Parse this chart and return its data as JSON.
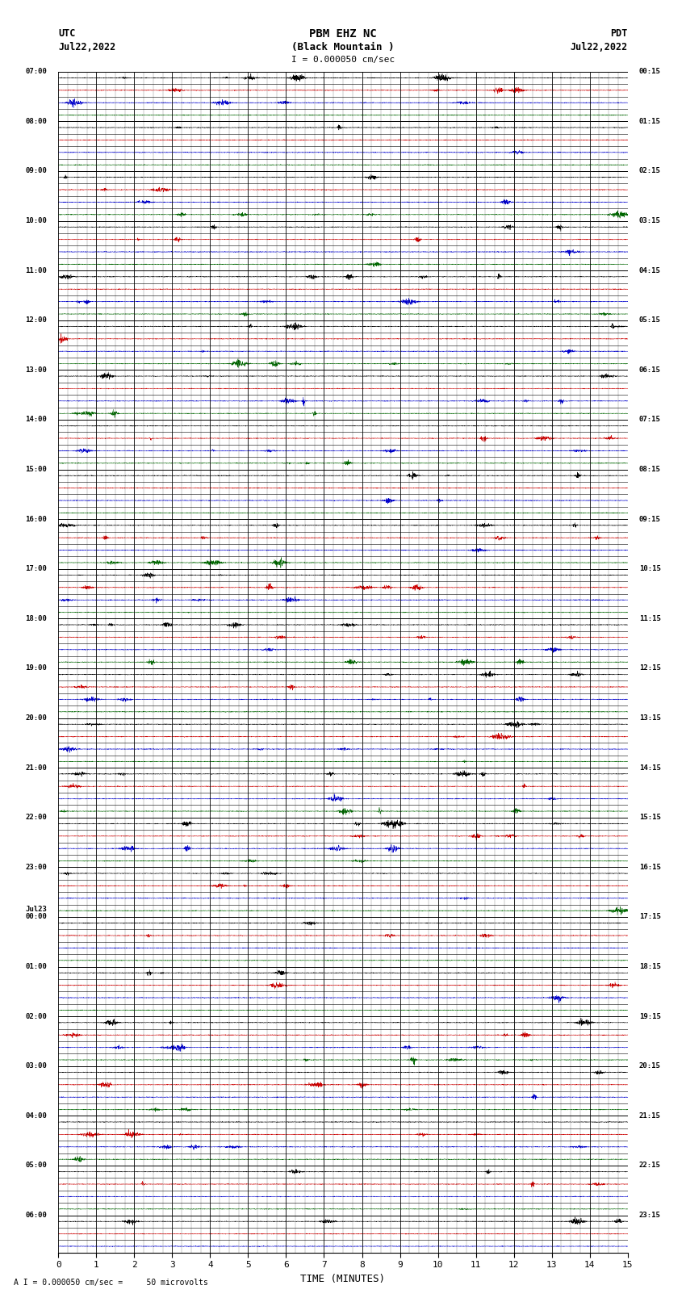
{
  "title_line1": "PBM EHZ NC",
  "title_line2": "(Black Mountain )",
  "scale_label": "I = 0.000050 cm/sec",
  "left_date": "Jul22,2022",
  "right_date": "Jul22,2022",
  "left_tz": "UTC",
  "right_tz": "PDT",
  "bottom_label": "TIME (MINUTES)",
  "bottom_note": "A I = 0.000050 cm/sec =     50 microvolts",
  "utc_hour_labels": [
    "07:00",
    "08:00",
    "09:00",
    "10:00",
    "11:00",
    "12:00",
    "13:00",
    "14:00",
    "15:00",
    "16:00",
    "17:00",
    "18:00",
    "19:00",
    "20:00",
    "21:00",
    "22:00",
    "23:00",
    "00:00",
    "01:00",
    "02:00",
    "03:00",
    "04:00",
    "05:00",
    "06:00"
  ],
  "jul23_row_idx": 68,
  "pdt_hour_labels": [
    "00:15",
    "01:15",
    "02:15",
    "03:15",
    "04:15",
    "05:15",
    "06:15",
    "07:15",
    "08:15",
    "09:15",
    "10:15",
    "11:15",
    "12:15",
    "13:15",
    "14:15",
    "15:15",
    "16:15",
    "17:15",
    "18:15",
    "19:15",
    "20:15",
    "21:15",
    "22:15",
    "23:15"
  ],
  "n_rows": 95,
  "minutes_per_row": 15,
  "samples_per_row": 3600,
  "bg_color": "#ffffff",
  "trace_colors": [
    "#000000",
    "#cc0000",
    "#0000cc",
    "#006600"
  ],
  "base_noise_amp": 0.04,
  "minor_grid_interval": 0.25
}
